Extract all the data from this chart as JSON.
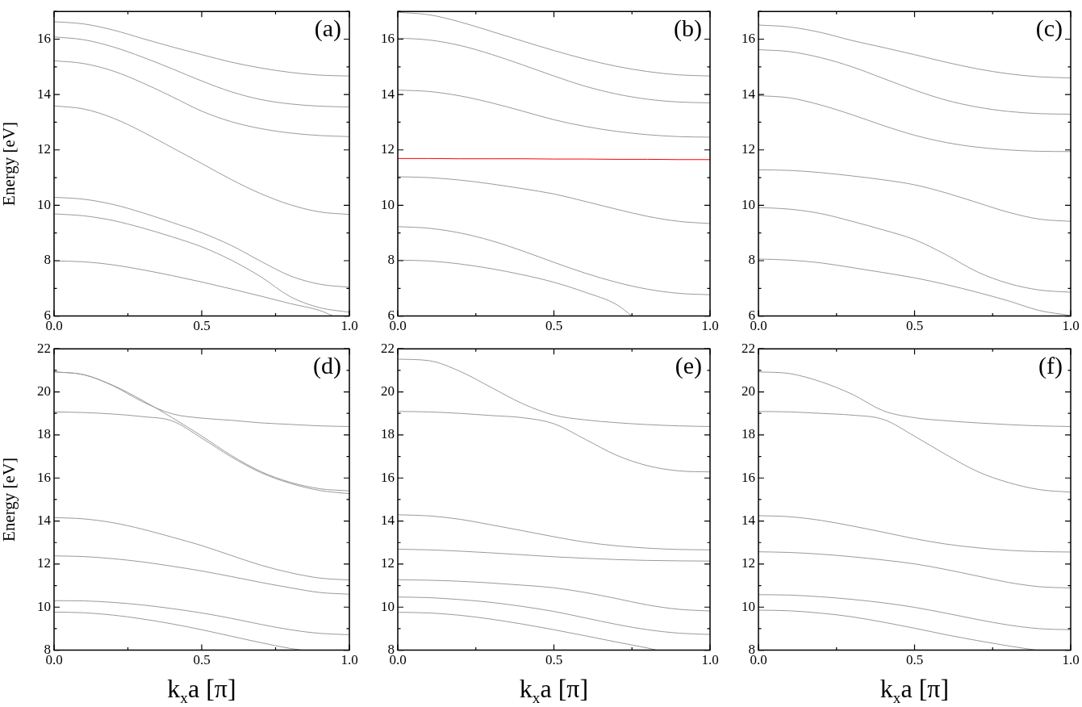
{
  "chart_data": [
    {
      "type": "line",
      "ylabel": "Energy [eV]",
      "annotations": [
        "(a)"
      ],
      "x": [
        0,
        0.1,
        0.2,
        0.3,
        0.4,
        0.5,
        0.6,
        0.7,
        0.8,
        0.9,
        1.0
      ],
      "xlim": [
        0,
        1
      ],
      "xticks": [
        {
          "value": 0,
          "label": "0.0"
        },
        {
          "value": 0.25,
          "label": null
        },
        {
          "value": 0.5,
          "label": "0.5"
        },
        {
          "value": 0.75,
          "label": null
        },
        {
          "value": 1,
          "label": "1.0"
        }
      ],
      "ylim": [
        6,
        17
      ],
      "yticks": [
        6,
        {
          "value": 7,
          "label": null
        },
        8,
        {
          "value": 9,
          "label": null
        },
        10,
        {
          "value": 11,
          "label": null
        },
        12,
        {
          "value": 13,
          "label": null
        },
        14,
        {
          "value": 15,
          "label": null
        },
        16,
        {
          "value": 17,
          "label": null
        }
      ],
      "legend": false,
      "series": [
        {
          "color": "#9a9a9a",
          "values": [
            16.63,
            16.55,
            16.33,
            16.02,
            15.72,
            15.44,
            15.17,
            14.96,
            14.8,
            14.7,
            14.67
          ]
        },
        {
          "color": "#9a9a9a",
          "values": [
            16.08,
            15.98,
            15.72,
            15.35,
            14.93,
            14.49,
            14.1,
            13.82,
            13.66,
            13.58,
            13.55
          ]
        },
        {
          "color": "#9a9a9a",
          "values": [
            15.22,
            15.12,
            14.85,
            14.42,
            13.92,
            13.4,
            13.02,
            12.77,
            12.61,
            12.52,
            12.48
          ]
        },
        {
          "color": "#9a9a9a",
          "values": [
            13.59,
            13.48,
            13.15,
            12.65,
            12.08,
            11.51,
            10.93,
            10.42,
            10.02,
            9.76,
            9.67
          ]
        },
        {
          "color": "#9a9a9a",
          "values": [
            10.29,
            10.22,
            10.03,
            9.73,
            9.38,
            9.01,
            8.55,
            7.98,
            7.45,
            7.15,
            7.04
          ]
        },
        {
          "color": "#9a9a9a",
          "values": [
            9.69,
            9.62,
            9.45,
            9.18,
            8.86,
            8.5,
            8.02,
            7.42,
            6.7,
            6.3,
            6.14
          ]
        },
        {
          "color": "#9a9a9a",
          "x": [
            0,
            0.1,
            0.2,
            0.3,
            0.4,
            0.5,
            0.6,
            0.7,
            0.8,
            0.9,
            0.945
          ],
          "values": [
            7.99,
            7.96,
            7.85,
            7.67,
            7.46,
            7.23,
            6.98,
            6.72,
            6.45,
            6.2,
            6.0
          ]
        }
      ]
    },
    {
      "type": "line",
      "annotations": [
        "(b)"
      ],
      "x": [
        0,
        0.1,
        0.2,
        0.3,
        0.4,
        0.5,
        0.6,
        0.7,
        0.8,
        0.9,
        1.0
      ],
      "xlim": [
        0,
        1
      ],
      "xticks": [
        {
          "value": 0,
          "label": "0.0"
        },
        {
          "value": 0.25,
          "label": null
        },
        {
          "value": 0.5,
          "label": "0.5"
        },
        {
          "value": 0.75,
          "label": null
        },
        {
          "value": 1,
          "label": "1.0"
        }
      ],
      "ylim": [
        6,
        17
      ],
      "yticks": [
        6,
        {
          "value": 7,
          "label": null
        },
        8,
        {
          "value": 9,
          "label": null
        },
        10,
        {
          "value": 11,
          "label": null
        },
        12,
        {
          "value": 13,
          "label": null
        },
        14,
        {
          "value": 15,
          "label": null
        },
        16,
        {
          "value": 17,
          "label": null
        }
      ],
      "legend": false,
      "series": [
        {
          "color": "#9a9a9a",
          "values": [
            16.97,
            16.88,
            16.62,
            16.28,
            15.93,
            15.59,
            15.28,
            15.02,
            14.83,
            14.71,
            14.67
          ]
        },
        {
          "color": "#9a9a9a",
          "values": [
            16.04,
            15.97,
            15.77,
            15.45,
            15.07,
            14.67,
            14.3,
            14.02,
            13.83,
            13.73,
            13.7
          ]
        },
        {
          "color": "#9a9a9a",
          "values": [
            14.16,
            14.11,
            13.95,
            13.7,
            13.4,
            13.09,
            12.85,
            12.67,
            12.55,
            12.48,
            12.46
          ]
        },
        {
          "color": "#ff0000",
          "values": [
            11.69,
            11.69,
            11.68,
            11.68,
            11.68,
            11.67,
            11.67,
            11.66,
            11.66,
            11.65,
            11.65
          ]
        },
        {
          "color": "#9a9a9a",
          "values": [
            11.03,
            11.0,
            10.91,
            10.77,
            10.6,
            10.41,
            10.14,
            9.86,
            9.6,
            9.42,
            9.34
          ]
        },
        {
          "color": "#9a9a9a",
          "values": [
            9.23,
            9.17,
            9.0,
            8.72,
            8.35,
            7.94,
            7.55,
            7.22,
            6.97,
            6.82,
            6.77
          ]
        },
        {
          "color": "#9a9a9a",
          "x": [
            0,
            0.1,
            0.2,
            0.3,
            0.4,
            0.5,
            0.6,
            0.7,
            0.75
          ],
          "values": [
            8.02,
            7.99,
            7.88,
            7.71,
            7.49,
            7.22,
            6.86,
            6.42,
            6.0
          ]
        }
      ]
    },
    {
      "type": "line",
      "annotations": [
        "(c)"
      ],
      "x": [
        0,
        0.1,
        0.2,
        0.3,
        0.4,
        0.5,
        0.6,
        0.7,
        0.8,
        0.9,
        1.0
      ],
      "xlim": [
        0,
        1
      ],
      "xticks": [
        {
          "value": 0,
          "label": "0.0"
        },
        {
          "value": 0.25,
          "label": null
        },
        {
          "value": 0.5,
          "label": "0.5"
        },
        {
          "value": 0.75,
          "label": null
        },
        {
          "value": 1,
          "label": "1.0"
        }
      ],
      "ylim": [
        6,
        17
      ],
      "yticks": [
        6,
        {
          "value": 7,
          "label": null
        },
        8,
        {
          "value": 9,
          "label": null
        },
        10,
        {
          "value": 11,
          "label": null
        },
        12,
        {
          "value": 13,
          "label": null
        },
        14,
        {
          "value": 15,
          "label": null
        },
        16,
        {
          "value": 17,
          "label": null
        }
      ],
      "legend": false,
      "series": [
        {
          "color": "#9a9a9a",
          "values": [
            16.51,
            16.44,
            16.24,
            15.95,
            15.7,
            15.44,
            15.17,
            14.93,
            14.75,
            14.64,
            14.6
          ]
        },
        {
          "color": "#9a9a9a",
          "values": [
            15.62,
            15.55,
            15.33,
            15.0,
            14.58,
            14.16,
            13.8,
            13.55,
            13.39,
            13.31,
            13.29
          ]
        },
        {
          "color": "#9a9a9a",
          "values": [
            13.96,
            13.88,
            13.62,
            13.27,
            12.88,
            12.53,
            12.27,
            12.1,
            12.0,
            11.95,
            11.94
          ]
        },
        {
          "color": "#9a9a9a",
          "values": [
            11.28,
            11.26,
            11.18,
            11.06,
            10.92,
            10.74,
            10.45,
            10.1,
            9.75,
            9.5,
            9.42
          ]
        },
        {
          "color": "#9a9a9a",
          "values": [
            9.92,
            9.86,
            9.7,
            9.42,
            9.11,
            8.76,
            8.22,
            7.6,
            7.18,
            6.94,
            6.86
          ]
        },
        {
          "color": "#9a9a9a",
          "values": [
            8.06,
            8.02,
            7.92,
            7.75,
            7.57,
            7.38,
            7.14,
            6.86,
            6.55,
            6.2,
            6.02
          ]
        }
      ]
    },
    {
      "type": "line",
      "xlabel": "k$_{x}$a [π]",
      "ylabel": "Energy [eV]",
      "annotations": [
        "(d)"
      ],
      "x": [
        0,
        0.1,
        0.2,
        0.3,
        0.4,
        0.5,
        0.6,
        0.7,
        0.8,
        0.9,
        1.0
      ],
      "xlim": [
        0,
        1
      ],
      "xticks": [
        {
          "value": 0,
          "label": "0.0"
        },
        {
          "value": 0.25,
          "label": null
        },
        {
          "value": 0.5,
          "label": "0.5"
        },
        {
          "value": 0.75,
          "label": null
        },
        {
          "value": 1,
          "label": "1.0"
        }
      ],
      "ylim": [
        8,
        22
      ],
      "yticks": [
        8,
        {
          "value": 9,
          "label": null
        },
        10,
        {
          "value": 11,
          "label": null
        },
        12,
        {
          "value": 13,
          "label": null
        },
        14,
        {
          "value": 15,
          "label": null
        },
        16,
        {
          "value": 17,
          "label": null
        },
        18,
        {
          "value": 19,
          "label": null
        },
        20,
        {
          "value": 21,
          "label": null
        },
        22
      ],
      "legend": false,
      "series": [
        {
          "color": "#9a9a9a",
          "values": [
            20.93,
            20.8,
            20.28,
            19.54,
            18.98,
            18.78,
            18.68,
            18.56,
            18.49,
            18.42,
            18.39
          ]
        },
        {
          "color": "#9a9a9a",
          "values": [
            20.93,
            20.8,
            20.3,
            19.6,
            18.8,
            17.95,
            17.05,
            16.3,
            15.8,
            15.5,
            15.4
          ]
        },
        {
          "color": "#9a9a9a",
          "values": [
            19.07,
            19.04,
            18.97,
            18.85,
            18.65,
            17.85,
            16.98,
            16.25,
            15.75,
            15.42,
            15.27
          ]
        },
        {
          "color": "#9a9a9a",
          "values": [
            14.16,
            14.1,
            13.92,
            13.62,
            13.25,
            12.86,
            12.4,
            11.95,
            11.6,
            11.35,
            11.26
          ]
        },
        {
          "color": "#9a9a9a",
          "values": [
            12.38,
            12.35,
            12.25,
            12.1,
            11.9,
            11.68,
            11.42,
            11.15,
            10.9,
            10.68,
            10.6
          ]
        },
        {
          "color": "#9a9a9a",
          "values": [
            10.3,
            10.29,
            10.22,
            10.1,
            9.93,
            9.73,
            9.48,
            9.2,
            8.95,
            8.78,
            8.72
          ]
        },
        {
          "color": "#9a9a9a",
          "x": [
            0,
            0.1,
            0.2,
            0.3,
            0.4,
            0.5,
            0.6,
            0.7,
            0.8,
            0.84
          ],
          "values": [
            9.77,
            9.74,
            9.63,
            9.45,
            9.22,
            8.95,
            8.65,
            8.35,
            8.08,
            8.0
          ]
        }
      ]
    },
    {
      "type": "line",
      "xlabel": "k$_{x}$a [π]",
      "annotations": [
        "(e)"
      ],
      "x": [
        0,
        0.1,
        0.2,
        0.3,
        0.4,
        0.5,
        0.6,
        0.7,
        0.8,
        0.9,
        1.0
      ],
      "xlim": [
        0,
        1
      ],
      "xticks": [
        {
          "value": 0,
          "label": "0.0"
        },
        {
          "value": 0.25,
          "label": null
        },
        {
          "value": 0.5,
          "label": "0.5"
        },
        {
          "value": 0.75,
          "label": null
        },
        {
          "value": 1,
          "label": "1.0"
        }
      ],
      "ylim": [
        8,
        22
      ],
      "yticks": [
        8,
        {
          "value": 9,
          "label": null
        },
        10,
        {
          "value": 11,
          "label": null
        },
        12,
        {
          "value": 13,
          "label": null
        },
        14,
        {
          "value": 15,
          "label": null
        },
        16,
        {
          "value": 17,
          "label": null
        },
        18,
        {
          "value": 19,
          "label": null
        },
        20,
        {
          "value": 21,
          "label": null
        },
        22
      ],
      "legend": false,
      "series": [
        {
          "color": "#9a9a9a",
          "values": [
            21.52,
            21.45,
            20.95,
            20.2,
            19.45,
            18.92,
            18.7,
            18.57,
            18.48,
            18.42,
            18.39
          ]
        },
        {
          "color": "#9a9a9a",
          "values": [
            19.09,
            19.07,
            19.0,
            18.9,
            18.8,
            18.52,
            17.8,
            17.06,
            16.57,
            16.33,
            16.28
          ]
        },
        {
          "color": "#9a9a9a",
          "values": [
            14.29,
            14.24,
            14.08,
            13.82,
            13.55,
            13.27,
            13.02,
            12.85,
            12.74,
            12.68,
            12.66
          ]
        },
        {
          "color": "#9a9a9a",
          "values": [
            12.69,
            12.66,
            12.6,
            12.52,
            12.43,
            12.34,
            12.27,
            12.21,
            12.17,
            12.15,
            12.14
          ]
        },
        {
          "color": "#9a9a9a",
          "values": [
            11.27,
            11.25,
            11.2,
            11.12,
            11.02,
            10.9,
            10.68,
            10.4,
            10.1,
            9.9,
            9.82
          ]
        },
        {
          "color": "#9a9a9a",
          "values": [
            10.47,
            10.44,
            10.35,
            10.22,
            10.03,
            9.8,
            9.5,
            9.2,
            8.95,
            8.79,
            8.73
          ]
        },
        {
          "color": "#9a9a9a",
          "x": [
            0,
            0.1,
            0.2,
            0.3,
            0.4,
            0.5,
            0.6,
            0.7,
            0.8,
            0.83
          ],
          "values": [
            9.76,
            9.73,
            9.62,
            9.44,
            9.21,
            8.95,
            8.67,
            8.38,
            8.1,
            8.0
          ]
        }
      ]
    },
    {
      "type": "line",
      "xlabel": "k$_{x}$a [π]",
      "annotations": [
        "(f)"
      ],
      "x": [
        0,
        0.1,
        0.2,
        0.3,
        0.4,
        0.5,
        0.6,
        0.7,
        0.8,
        0.9,
        1.0
      ],
      "xlim": [
        0,
        1
      ],
      "xticks": [
        {
          "value": 0,
          "label": "0.0"
        },
        {
          "value": 0.25,
          "label": null
        },
        {
          "value": 0.5,
          "label": "0.5"
        },
        {
          "value": 0.75,
          "label": null
        },
        {
          "value": 1,
          "label": "1.0"
        }
      ],
      "ylim": [
        8,
        22
      ],
      "yticks": [
        8,
        {
          "value": 9,
          "label": null
        },
        10,
        {
          "value": 11,
          "label": null
        },
        12,
        {
          "value": 13,
          "label": null
        },
        14,
        {
          "value": 15,
          "label": null
        },
        16,
        {
          "value": 17,
          "label": null
        },
        18,
        {
          "value": 19,
          "label": null
        },
        20,
        {
          "value": 21,
          "label": null
        },
        22
      ],
      "legend": false,
      "series": [
        {
          "color": "#9a9a9a",
          "values": [
            20.93,
            20.85,
            20.47,
            19.89,
            19.12,
            18.8,
            18.66,
            18.56,
            18.48,
            18.42,
            18.39
          ]
        },
        {
          "color": "#9a9a9a",
          "values": [
            19.09,
            19.07,
            19.0,
            18.92,
            18.72,
            17.94,
            17.09,
            16.31,
            15.79,
            15.46,
            15.34
          ]
        },
        {
          "color": "#9a9a9a",
          "values": [
            14.25,
            14.2,
            14.03,
            13.77,
            13.48,
            13.18,
            12.93,
            12.76,
            12.64,
            12.58,
            12.56
          ]
        },
        {
          "color": "#9a9a9a",
          "values": [
            12.57,
            12.54,
            12.46,
            12.34,
            12.19,
            12.01,
            11.75,
            11.45,
            11.15,
            10.95,
            10.89
          ]
        },
        {
          "color": "#9a9a9a",
          "values": [
            10.58,
            10.56,
            10.48,
            10.36,
            10.2,
            9.99,
            9.72,
            9.43,
            9.17,
            9.0,
            8.95
          ]
        },
        {
          "color": "#9a9a9a",
          "x": [
            0,
            0.1,
            0.2,
            0.3,
            0.4,
            0.5,
            0.6,
            0.7,
            0.8,
            0.89
          ],
          "values": [
            9.86,
            9.83,
            9.72,
            9.55,
            9.3,
            9.02,
            8.72,
            8.45,
            8.2,
            8.0
          ]
        }
      ]
    }
  ]
}
